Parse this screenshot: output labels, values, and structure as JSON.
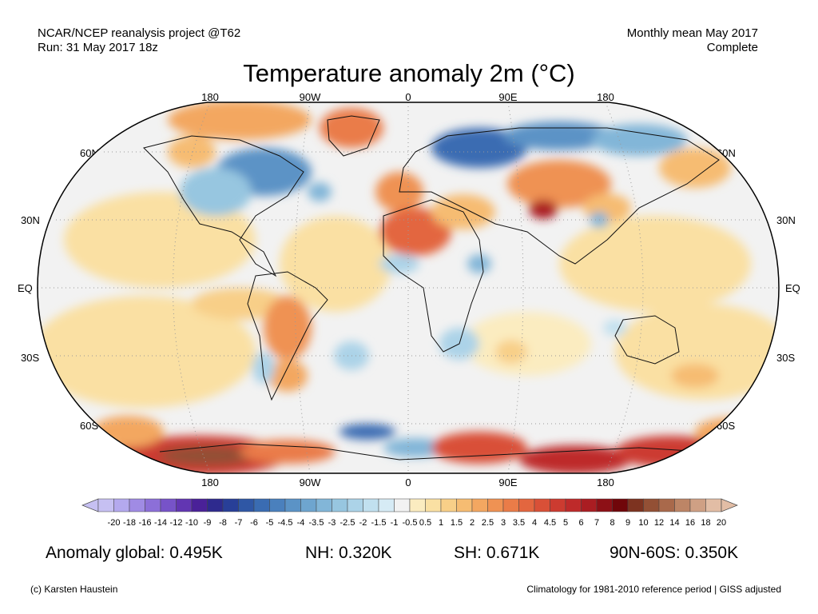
{
  "header": {
    "source_line1": "NCAR/NCEP reanalysis project @T62",
    "source_line2": "Run: 31 May 2017 18z",
    "period_line1": "Monthly mean May 2017",
    "period_line2": "Complete"
  },
  "title": "Temperature anomaly 2m (°C)",
  "map": {
    "lon_labels": [
      "180",
      "90W",
      "0",
      "90E",
      "180"
    ],
    "lat_labels": [
      "60N",
      "30N",
      "EQ",
      "30S",
      "60S"
    ]
  },
  "colorbar": {
    "labels": [
      "-20",
      "-18",
      "-16",
      "-14",
      "-12",
      "-10",
      "-9",
      "-8",
      "-7",
      "-6",
      "-5",
      "-4.5",
      "-4",
      "-3.5",
      "-3",
      "-2.5",
      "-2",
      "-1.5",
      "-1",
      "-0.5",
      "0.5",
      "1",
      "1.5",
      "2",
      "2.5",
      "3",
      "3.5",
      "4",
      "4.5",
      "5",
      "6",
      "7",
      "8",
      "9",
      "10",
      "12",
      "14",
      "16",
      "18",
      "20"
    ],
    "colors": [
      "#c6c0f2",
      "#b4a9ee",
      "#a08be4",
      "#8c6fd8",
      "#7753c8",
      "#6236b2",
      "#4a2198",
      "#2e2a8e",
      "#283f98",
      "#2f57a5",
      "#3a6cb2",
      "#4a80bd",
      "#5b93c6",
      "#6ea5cf",
      "#82b6d8",
      "#97c6e0",
      "#acd3e8",
      "#c1e0ef",
      "#d6ebf5",
      "#f2f2f2",
      "#fbecc0",
      "#fae0a3",
      "#f8cf88",
      "#f6bc72",
      "#f3a761",
      "#ef9253",
      "#ea7c48",
      "#e3663f",
      "#d95037",
      "#cc3b30",
      "#be2a2a",
      "#aa1d22",
      "#8d1016",
      "#70060a",
      "#7d3320",
      "#935035",
      "#a9694b",
      "#bd8566",
      "#cfa084",
      "#e2bda5"
    ]
  },
  "stats": {
    "global": "Anomaly global: 0.495K",
    "nh": "NH: 0.320K",
    "sh": "SH: 0.671K",
    "polar": "90N-60S: 0.350K"
  },
  "footer": {
    "credit": "(c) Karsten Haustein",
    "note": "Climatology for 1981-2010 reference period | GISS adjusted"
  }
}
